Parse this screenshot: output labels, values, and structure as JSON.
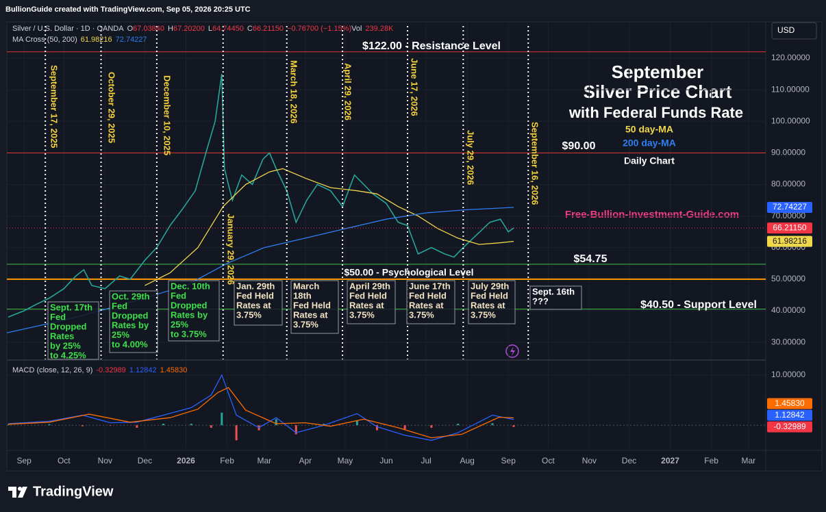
{
  "header": {
    "credit": "BullionGuide created with TradingView.com, Sep 05, 2026 20:25 UTC",
    "currency": "USD",
    "brand": "TradingView"
  },
  "title_block": [
    "September",
    "Silver Price Chart",
    "with Federal Funds Rate"
  ],
  "subtitle": "Daily Chart",
  "website": "Free-Bullion-Investment-Guide.com",
  "chart_data": [
    {
      "type": "line",
      "legend": {
        "symbol": "Silver / U.S. Dollar · 1D · OANDA",
        "ohlc": [
          "O",
          "67.03840",
          "H",
          "67.20200",
          "L",
          "64.74450",
          "C",
          "66.21150",
          "−0.76700 (−1.15%)",
          "Vol",
          "239.28K"
        ],
        "ma_label": "MA Cross (50, 200)"
      },
      "xlim": [
        "2025-08-19",
        "2027-03-14"
      ],
      "ylim": [
        24.6,
        131.5
      ],
      "yticks": [
        {
          "value": 30,
          "label": "30.00000"
        },
        {
          "value": 40,
          "label": "40.00000"
        },
        {
          "value": 50,
          "label": "50.00000"
        },
        {
          "value": 60,
          "label": "60.00000"
        },
        {
          "value": 70,
          "label": "70.00000"
        },
        {
          "value": 80,
          "label": "80.00000"
        },
        {
          "value": 90,
          "label": "90.00000"
        },
        {
          "value": 100,
          "label": "100.00000"
        },
        {
          "value": 110,
          "label": "110.00000"
        },
        {
          "value": 120,
          "label": "120.00000"
        }
      ],
      "grid": true,
      "series": [
        {
          "color": "#26a69a",
          "badge": "66.21150",
          "badge_color": "#f23645",
          "x": [
            "2025-08-20",
            "2025-09-01",
            "2025-09-10",
            "2025-09-20",
            "2025-10-01",
            "2025-10-10",
            "2025-10-16",
            "2025-10-22",
            "2025-11-01",
            "2025-11-12",
            "2025-11-20",
            "2025-12-01",
            "2025-12-10",
            "2025-12-20",
            "2025-12-29",
            "2026-01-08",
            "2026-01-16",
            "2026-01-23",
            "2026-01-28",
            "2026-01-30",
            "2026-02-05",
            "2026-02-12",
            "2026-02-20",
            "2026-02-28",
            "2026-03-05",
            "2026-03-10",
            "2026-03-18",
            "2026-03-25",
            "2026-04-02",
            "2026-04-10",
            "2026-04-20",
            "2026-04-29",
            "2026-05-08",
            "2026-05-15",
            "2026-05-22",
            "2026-06-01",
            "2026-06-10",
            "2026-06-17",
            "2026-06-25",
            "2026-07-05",
            "2026-07-15",
            "2026-07-22",
            "2026-07-29",
            "2026-08-08",
            "2026-08-18",
            "2026-08-26",
            "2026-09-01",
            "2026-09-05"
          ],
          "values": [
            38,
            40,
            42,
            44,
            47,
            51,
            53,
            48,
            47,
            51,
            50,
            56,
            60,
            67,
            72,
            78,
            90,
            100,
            115,
            85,
            75,
            83,
            80,
            88,
            90,
            85,
            78,
            68,
            75,
            80,
            78,
            73,
            83,
            80,
            77,
            74,
            68,
            67,
            58,
            60,
            58,
            57,
            60,
            64,
            68,
            69,
            65,
            66.2115
          ]
        },
        {
          "name": "50 day-MA",
          "color": "#f0d84a",
          "badge": "61.98216",
          "badge_color": "#f0d84a",
          "x": [
            "2025-12-01",
            "2025-12-20",
            "2026-01-10",
            "2026-01-29",
            "2026-02-15",
            "2026-03-05",
            "2026-03-15",
            "2026-04-01",
            "2026-04-20",
            "2026-05-10",
            "2026-05-25",
            "2026-06-10",
            "2026-06-25",
            "2026-07-10",
            "2026-07-25",
            "2026-08-10",
            "2026-08-25",
            "2026-09-05"
          ],
          "values": [
            48,
            52,
            60,
            73,
            80,
            84,
            85,
            82,
            79,
            78,
            77,
            73,
            70,
            66,
            63,
            61,
            61.5,
            61.98216
          ]
        },
        {
          "name": "200 day-MA",
          "color": "#2e7ef0",
          "badge": "72.74227",
          "badge_color": "#2962ff",
          "x": [
            "2025-08-19",
            "2025-10-01",
            "2025-11-15",
            "2026-01-01",
            "2026-02-01",
            "2026-03-01",
            "2026-04-01",
            "2026-05-01",
            "2026-06-01",
            "2026-07-01",
            "2026-08-01",
            "2026-09-05"
          ],
          "values": [
            33,
            37,
            42,
            48,
            55,
            60,
            63,
            66,
            69,
            71,
            72,
            72.74227
          ]
        }
      ],
      "levels": [
        {
          "value": 122,
          "label": "$122.00 - Resistance Level",
          "color": "#e53935"
        },
        {
          "value": 90,
          "label": "$90.00",
          "color": "#e53935"
        },
        {
          "value": 54.75,
          "label": "$54.75",
          "color": "#43c24a"
        },
        {
          "value": 50,
          "label": "$50.00 - Psychological Level",
          "color": "#ff9800"
        },
        {
          "value": 40.5,
          "label": "$40.50 - Support Level",
          "color": "#43c24a"
        }
      ],
      "events": [
        {
          "date": "2025-09-17",
          "label": "September 17, 2025",
          "note": [
            "Sept. 17th",
            "Fed",
            "Dropped",
            "Rates",
            "by 25%",
            "to 4.25%"
          ],
          "color": "#3ee04a"
        },
        {
          "date": "2025-10-29",
          "label": "October 29, 2025",
          "note": [
            "Oct. 29th",
            "Fed",
            "Dropped",
            "Rates by",
            "25%",
            "to 4.00%"
          ],
          "color": "#3ee04a"
        },
        {
          "date": "2025-12-10",
          "label": "December 10, 2025",
          "note": [
            "Dec. 10th",
            "Fed",
            "Dropped",
            "Rates by",
            "25%",
            "to 3.75%"
          ],
          "color": "#3ee04a"
        },
        {
          "date": "2026-01-29",
          "label": "January 29, 2026",
          "note": [
            "Jan. 29th",
            "Fed Held",
            "Rates at",
            "3.75%"
          ],
          "color": "#f3e3c3"
        },
        {
          "date": "2026-03-18",
          "label": "March 18, 2026",
          "note": [
            "March",
            "18th",
            "Fed Held",
            "Rates at",
            "3.75%"
          ],
          "color": "#f3e3c3"
        },
        {
          "date": "2026-04-29",
          "label": "April 29, 2026",
          "note": [
            "April 29th",
            "Fed Held",
            "Rates at",
            "3.75%"
          ],
          "color": "#f3e3c3"
        },
        {
          "date": "2026-06-17",
          "label": "June 17, 2026",
          "note": [
            "June 17th",
            "Fed Held",
            "Rates at",
            "3.75%"
          ],
          "color": "#f3e3c3"
        },
        {
          "date": "2026-07-29",
          "label": "July 29, 2026",
          "note": [
            "July 29th",
            "Fed Held",
            "Rates at",
            "3.75%"
          ],
          "color": "#f3e3c3"
        },
        {
          "date": "2026-09-16",
          "label": "September 16, 2026",
          "note": [
            "Sept. 16th",
            "???"
          ],
          "color": "#ffffff"
        }
      ]
    },
    {
      "type": "macd",
      "title": "MACD (close, 12, 26, 9)",
      "xlim": [
        "2025-08-19",
        "2027-03-14"
      ],
      "ylim": [
        -4.6,
        12.7
      ],
      "yticks": [
        {
          "value": 10,
          "label": "10.00000"
        }
      ],
      "xticks": [
        {
          "value": "2025-09-01",
          "label": "Sep"
        },
        {
          "value": "2025-10-01",
          "label": "Oct"
        },
        {
          "value": "2025-11-01",
          "label": "Nov"
        },
        {
          "value": "2025-12-01",
          "label": "Dec"
        },
        {
          "value": "2026-01-01",
          "label": "2026"
        },
        {
          "value": "2026-02-01",
          "label": "Feb"
        },
        {
          "value": "2026-03-01",
          "label": "Mar"
        },
        {
          "value": "2026-04-01",
          "label": "Apr"
        },
        {
          "value": "2026-05-01",
          "label": "May"
        },
        {
          "value": "2026-06-01",
          "label": "Jun"
        },
        {
          "value": "2026-07-01",
          "label": "Jul"
        },
        {
          "value": "2026-08-01",
          "label": "Aug"
        },
        {
          "value": "2026-09-01",
          "label": "Sep"
        },
        {
          "value": "2026-10-01",
          "label": "Oct"
        },
        {
          "value": "2026-11-01",
          "label": "Nov"
        },
        {
          "value": "2026-12-01",
          "label": "Dec"
        },
        {
          "value": "2027-01-01",
          "label": "2027"
        },
        {
          "value": "2027-02-01",
          "label": "Feb"
        },
        {
          "value": "2027-03-01",
          "label": "Mar"
        }
      ],
      "series": [
        {
          "style": "histogram",
          "color_up": "#26a69a",
          "color_down": "#ef5350",
          "badge": "-0.32989",
          "badge_color": "#f23645",
          "x": [
            "2025-08-20",
            "2025-09-20",
            "2025-10-15",
            "2025-11-05",
            "2025-11-25",
            "2025-12-15",
            "2026-01-05",
            "2026-01-20",
            "2026-01-28",
            "2026-02-08",
            "2026-02-25",
            "2026-03-10",
            "2026-03-25",
            "2026-04-15",
            "2026-05-10",
            "2026-05-25",
            "2026-06-15",
            "2026-07-05",
            "2026-07-25",
            "2026-08-20",
            "2026-09-05"
          ],
          "values": [
            0.1,
            0.2,
            -0.2,
            -0.1,
            -0.5,
            0.3,
            0.3,
            -0.5,
            2.5,
            -3,
            -1,
            1.2,
            -1.8,
            0.3,
            1,
            -1,
            -0.8,
            -0.5,
            0.3,
            0.4,
            -0.32989
          ]
        },
        {
          "style": "line",
          "color": "#2962ff",
          "badge": "1.12842",
          "badge_color": "#2962ff",
          "x": [
            "2025-08-20",
            "2025-09-20",
            "2025-10-15",
            "2025-11-05",
            "2025-11-25",
            "2025-12-15",
            "2026-01-05",
            "2026-01-20",
            "2026-01-28",
            "2026-02-08",
            "2026-02-25",
            "2026-03-10",
            "2026-03-25",
            "2026-04-15",
            "2026-05-10",
            "2026-05-25",
            "2026-06-15",
            "2026-07-05",
            "2026-07-25",
            "2026-08-20",
            "2026-09-05"
          ],
          "values": [
            0.3,
            0.8,
            2,
            0.5,
            0.6,
            2,
            3.5,
            6,
            10,
            2,
            -0.5,
            1.5,
            -1.5,
            0,
            2.3,
            -0.3,
            -2,
            -3,
            -1.5,
            2,
            1.12842
          ]
        },
        {
          "style": "line",
          "color": "#ff6d00",
          "badge": "1.45830",
          "badge_color": "#ff6d00",
          "x": [
            "2025-08-20",
            "2025-09-20",
            "2025-10-20",
            "2025-11-20",
            "2025-12-20",
            "2026-01-10",
            "2026-01-25",
            "2026-02-02",
            "2026-02-15",
            "2026-03-10",
            "2026-04-01",
            "2026-04-20",
            "2026-05-15",
            "2026-06-10",
            "2026-07-05",
            "2026-07-28",
            "2026-08-25",
            "2026-09-05"
          ],
          "values": [
            0.2,
            0.6,
            2.2,
            0.6,
            1.5,
            3.2,
            6.5,
            7.5,
            3,
            0.3,
            0.5,
            -0.2,
            1.2,
            -0.5,
            -2.5,
            -1.8,
            1.6,
            1.4583
          ]
        }
      ]
    }
  ]
}
